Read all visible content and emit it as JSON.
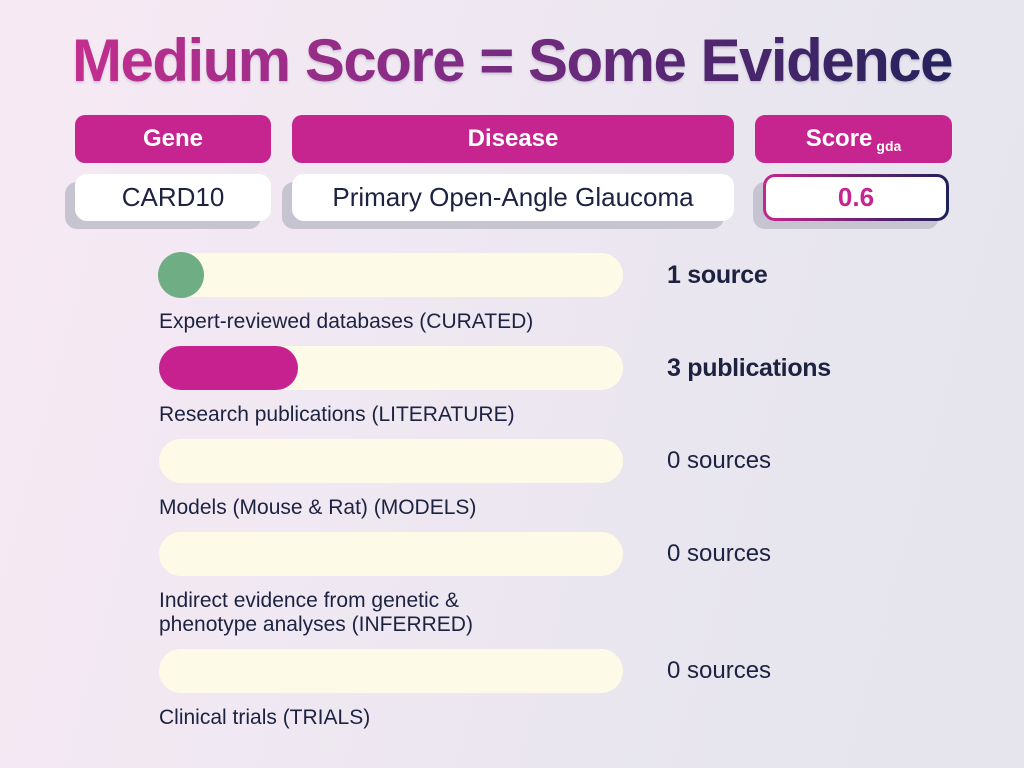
{
  "title": {
    "text": "Medium Score = Some Evidence"
  },
  "association": {
    "gene": {
      "header": "Gene",
      "value": "CARD10"
    },
    "disease": {
      "header": "Disease",
      "value": "Primary Open-Angle Glaucoma"
    },
    "score": {
      "header": "Score",
      "header_sub": "gda",
      "value": "0.6"
    }
  },
  "chart_data": {
    "type": "bar",
    "title": "Medium Score = Some Evidence",
    "categories": [
      "Expert-reviewed databases (CURATED)",
      "Research publications (LITERATURE)",
      "Models (Mouse & Rat) (MODELS)",
      "Indirect evidence from genetic & phenotype analyses (INFERRED)",
      "Clinical trials (TRIALS)"
    ],
    "values": [
      1,
      3,
      0,
      0,
      0
    ],
    "value_labels": [
      "1 source",
      "3 publications",
      "0 sources",
      "0 sources",
      "0 sources"
    ],
    "xlabel": "",
    "ylabel": "",
    "legend": "none",
    "grid": false,
    "rows": [
      {
        "label": "Expert-reviewed databases (CURATED)",
        "value_label": "1 source",
        "count": 1,
        "fill": "circle",
        "fill_color": "#6fad85",
        "fill_percent": 10,
        "bold": true
      },
      {
        "label": "Research publications (LITERATURE)",
        "value_label": "3 publications",
        "count": 3,
        "fill": "pill",
        "fill_color": "#c6218f",
        "fill_percent": 30,
        "bold": true
      },
      {
        "label": "Models (Mouse & Rat) (MODELS)",
        "value_label": "0 sources",
        "count": 0,
        "fill": "none",
        "fill_color": "",
        "fill_percent": 0,
        "bold": false
      },
      {
        "label": "Indirect evidence from genetic &\nphenotype analyses (INFERRED)",
        "value_label": "0 sources",
        "count": 0,
        "fill": "none",
        "fill_color": "",
        "fill_percent": 0,
        "bold": false
      },
      {
        "label": "Clinical trials (TRIALS)",
        "value_label": "0 sources",
        "count": 0,
        "fill": "none",
        "fill_color": "",
        "fill_percent": 0,
        "bold": false
      }
    ],
    "track_color": "#fdfbe8"
  },
  "colors": {
    "magenta": "#c6258f",
    "navy": "#1d2157",
    "cream": "#fdfbe8",
    "green": "#6fad85",
    "box_shadow_gray": "#c6c4d0",
    "background_left": "#f7e9f4",
    "background_right": "#e6e5ee",
    "title_gradient": [
      "#cb2f90",
      "#7c2c84",
      "#1d2157"
    ]
  }
}
